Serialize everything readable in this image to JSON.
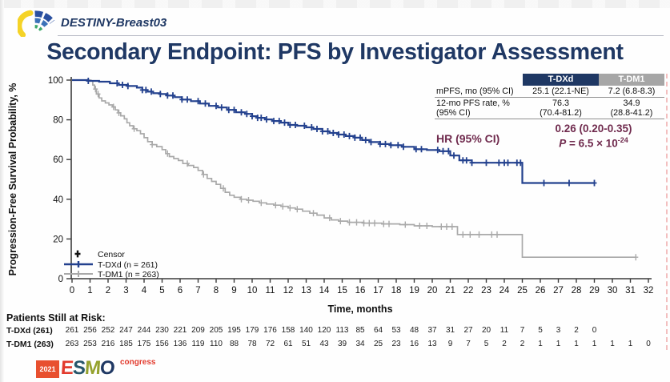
{
  "header": {
    "trial_name": "DESTINY-Breast03"
  },
  "title": "Secondary Endpoint: PFS by Investigator Assessment",
  "stats_table": {
    "columns": [
      "T-DXd",
      "T-DM1"
    ],
    "mpfs": {
      "label": "mPFS, mo (95% CI)",
      "tdxd": "25.1 (22.1-NE)",
      "tdm1": "7.2 (6.8-8.3)"
    },
    "rate12": {
      "label_line1": "12-mo PFS rate, %",
      "label_line2": "(95% CI)",
      "tdxd_line1": "76.3",
      "tdxd_line2": "(70.4-81.2)",
      "tdm1_line1": "34.9",
      "tdm1_line2": "(28.8-41.2)"
    },
    "hr": {
      "label": "HR (95% CI)",
      "value": "0.26 (0.20-0.35)",
      "p_label": "P",
      "p_mid": " = 6.5 × ",
      "p_base": "10",
      "p_exp": "-24"
    }
  },
  "legend": {
    "censor": "Censor",
    "tdxd": "T-DXd (n = 261)",
    "tdm1": "T-DM1 (n = 263)"
  },
  "at_risk": {
    "title": "Patients Still at Risk:",
    "rows": [
      {
        "label": "T-DXd (261)",
        "values": [
          261,
          256,
          252,
          247,
          244,
          230,
          221,
          209,
          205,
          195,
          179,
          176,
          158,
          140,
          120,
          113,
          85,
          64,
          53,
          48,
          37,
          31,
          27,
          20,
          11,
          7,
          5,
          3,
          2,
          0
        ]
      },
      {
        "label": "T-DM1 (263)",
        "values": [
          263,
          253,
          216,
          185,
          175,
          156,
          136,
          119,
          110,
          88,
          78,
          72,
          61,
          51,
          43,
          39,
          34,
          25,
          23,
          16,
          13,
          9,
          7,
          5,
          2,
          2,
          1,
          1,
          1,
          1,
          1,
          1,
          0
        ]
      }
    ]
  },
  "footer": {
    "year": "2021",
    "letters": [
      {
        "ch": "E",
        "color": "#e23b2e"
      },
      {
        "ch": "S",
        "color": "#27566b"
      },
      {
        "ch": "M",
        "color": "#95a22e"
      },
      {
        "ch": "O",
        "color": "#1f3864"
      }
    ],
    "congress": "congress"
  },
  "chart_data": {
    "type": "line",
    "subtype": "kaplan-meier-step",
    "title": "Secondary Endpoint: PFS by Investigator Assessment",
    "xlabel": "Time, months",
    "ylabel": "Progression-Free Survival Probability, %",
    "xlim": [
      0,
      32
    ],
    "ylim": [
      0,
      100
    ],
    "xticks": [
      0,
      1,
      2,
      3,
      4,
      5,
      6,
      7,
      8,
      9,
      10,
      11,
      12,
      13,
      14,
      15,
      16,
      17,
      18,
      19,
      20,
      21,
      22,
      23,
      24,
      25,
      26,
      27,
      28,
      29,
      30,
      31,
      32
    ],
    "yticks": [
      0,
      20,
      40,
      60,
      80,
      100
    ],
    "grid": false,
    "legend_position": "lower-left",
    "series": [
      {
        "name": "T-DXd (n = 261)",
        "color": "#23418e",
        "steps": [
          [
            0,
            100
          ],
          [
            0.9,
            99.6
          ],
          [
            1.5,
            99.2
          ],
          [
            2.1,
            98.4
          ],
          [
            2.6,
            97.6
          ],
          [
            3.1,
            97
          ],
          [
            3.6,
            96.2
          ],
          [
            3.9,
            95
          ],
          [
            4.2,
            94.2
          ],
          [
            4.5,
            93.4
          ],
          [
            4.9,
            93
          ],
          [
            5.3,
            92.2
          ],
          [
            5.7,
            91.4
          ],
          [
            6.1,
            90.2
          ],
          [
            6.6,
            89.4
          ],
          [
            7.1,
            88.2
          ],
          [
            7.6,
            87
          ],
          [
            8.1,
            86.2
          ],
          [
            8.6,
            85
          ],
          [
            9.1,
            83.8
          ],
          [
            9.6,
            83
          ],
          [
            10,
            81.8
          ],
          [
            10.3,
            81
          ],
          [
            10.7,
            80.2
          ],
          [
            11.1,
            79.4
          ],
          [
            11.6,
            78.6
          ],
          [
            12,
            77.4
          ],
          [
            12.5,
            77
          ],
          [
            13,
            76.2
          ],
          [
            13.4,
            75.4
          ],
          [
            13.9,
            74.2
          ],
          [
            14.3,
            73.4
          ],
          [
            14.8,
            72.6
          ],
          [
            15.2,
            71.8
          ],
          [
            15.7,
            71
          ],
          [
            16.1,
            69.8
          ],
          [
            16.5,
            68.8
          ],
          [
            17.1,
            67.8
          ],
          [
            17.7,
            67.2
          ],
          [
            18.3,
            66.4
          ],
          [
            19,
            65.2
          ],
          [
            19.7,
            64.8
          ],
          [
            20.4,
            64.2
          ],
          [
            21,
            62
          ],
          [
            21.5,
            59.6
          ],
          [
            22.2,
            58.4
          ],
          [
            25,
            48.2
          ],
          [
            29,
            48.2
          ]
        ],
        "censor_x": [
          0.9,
          2.5,
          2.8,
          3.1,
          3.9,
          4.1,
          4.4,
          4.9,
          5.3,
          5.6,
          6.1,
          6.4,
          7.0,
          7.4,
          8.0,
          8.3,
          8.7,
          9.0,
          9.4,
          9.7,
          10.0,
          10.3,
          10.5,
          10.8,
          11.2,
          11.5,
          11.8,
          12.1,
          12.4,
          12.9,
          13.3,
          13.6,
          13.9,
          14.2,
          14.5,
          14.8,
          15.1,
          15.4,
          15.7,
          16.0,
          16.3,
          16.6,
          17.1,
          17.4,
          17.7,
          18.1,
          18.4,
          19.1,
          19.4,
          20.3,
          20.6,
          20.9,
          21.2,
          21.7,
          21.9,
          22.2,
          23.0,
          23.7,
          24.0,
          24.2,
          24.7,
          24.9,
          26.2,
          27.6,
          29.0
        ]
      },
      {
        "name": "T-DM1 (n = 263)",
        "color": "#a9a9a9",
        "steps": [
          [
            0,
            100
          ],
          [
            1.05,
            99.5
          ],
          [
            1.15,
            97.5
          ],
          [
            1.25,
            95.5
          ],
          [
            1.35,
            93
          ],
          [
            1.5,
            91
          ],
          [
            1.65,
            89.5
          ],
          [
            1.85,
            88.5
          ],
          [
            2.05,
            87.5
          ],
          [
            2.25,
            86.5
          ],
          [
            2.4,
            85
          ],
          [
            2.55,
            83.5
          ],
          [
            2.7,
            82
          ],
          [
            2.9,
            80.5
          ],
          [
            3.05,
            78.5
          ],
          [
            3.2,
            77
          ],
          [
            3.4,
            75.5
          ],
          [
            3.6,
            74.5
          ],
          [
            3.8,
            73
          ],
          [
            4,
            71
          ],
          [
            4.2,
            69
          ],
          [
            4.45,
            67.5
          ],
          [
            4.7,
            66.5
          ],
          [
            5,
            65
          ],
          [
            5.2,
            63
          ],
          [
            5.4,
            61.5
          ],
          [
            5.65,
            60.5
          ],
          [
            5.9,
            59.5
          ],
          [
            6.15,
            58
          ],
          [
            6.45,
            57
          ],
          [
            6.75,
            56
          ],
          [
            7,
            54.5
          ],
          [
            7.25,
            52.5
          ],
          [
            7.5,
            50.5
          ],
          [
            7.75,
            49
          ],
          [
            8,
            47.5
          ],
          [
            8.25,
            45.5
          ],
          [
            8.5,
            43.5
          ],
          [
            8.75,
            42
          ],
          [
            9,
            41
          ],
          [
            9.35,
            40
          ],
          [
            9.7,
            39.5
          ],
          [
            10.05,
            39
          ],
          [
            10.4,
            38.2
          ],
          [
            10.8,
            37.6
          ],
          [
            11.2,
            37
          ],
          [
            11.6,
            36.4
          ],
          [
            12,
            35.6
          ],
          [
            12.4,
            35
          ],
          [
            12.8,
            34
          ],
          [
            13.2,
            33
          ],
          [
            13.6,
            32
          ],
          [
            14,
            30.6
          ],
          [
            14.4,
            29.6
          ],
          [
            14.8,
            29
          ],
          [
            15.3,
            28.4
          ],
          [
            16.2,
            28
          ],
          [
            17.2,
            27.6
          ],
          [
            18.2,
            27.2
          ],
          [
            19,
            26.6
          ],
          [
            20,
            26.2
          ],
          [
            21.4,
            22.2
          ],
          [
            25,
            10.8
          ],
          [
            31.3,
            10.8
          ]
        ],
        "censor_x": [
          1.3,
          1.45,
          2.3,
          2.6,
          3.45,
          4.45,
          5.3,
          6.4,
          7.3,
          8.4,
          9.4,
          9.8,
          10.5,
          11.3,
          11.7,
          12.1,
          12.5,
          13.4,
          14.3,
          14.9,
          15.4,
          15.8,
          16.2,
          16.5,
          16.8,
          17.3,
          17.6,
          18.5,
          19.3,
          19.7,
          20.5,
          20.8,
          21.1,
          21.7,
          22.1,
          22.6,
          23.3,
          23.6,
          31.3
        ]
      }
    ]
  }
}
